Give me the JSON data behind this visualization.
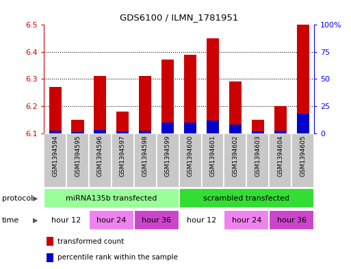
{
  "title": "GDS6100 / ILMN_1781951",
  "samples": [
    "GSM1394594",
    "GSM1394595",
    "GSM1394596",
    "GSM1394597",
    "GSM1394598",
    "GSM1394599",
    "GSM1394600",
    "GSM1394601",
    "GSM1394602",
    "GSM1394603",
    "GSM1394604",
    "GSM1394605"
  ],
  "transformed_count": [
    6.27,
    6.15,
    6.31,
    6.18,
    6.31,
    6.37,
    6.39,
    6.45,
    6.29,
    6.15,
    6.2,
    6.5
  ],
  "percentile_rank": [
    2.5,
    1.5,
    3.0,
    2.0,
    2.5,
    10.0,
    10.0,
    12.0,
    8.0,
    2.0,
    2.5,
    18.0
  ],
  "baseline": 6.1,
  "ylim_left": [
    6.1,
    6.5
  ],
  "ylim_right": [
    0,
    100
  ],
  "yticks_left": [
    6.1,
    6.2,
    6.3,
    6.4,
    6.5
  ],
  "yticks_right": [
    0,
    25,
    50,
    75,
    100
  ],
  "ytick_labels_right": [
    "0",
    "25",
    "50",
    "75",
    "100%"
  ],
  "bar_color_red": "#CC0000",
  "bar_color_blue": "#0000CC",
  "bar_width": 0.55,
  "protocol_groups": [
    {
      "label": "miRNA135b transfected",
      "start": 0,
      "end": 6,
      "color": "#99FF99"
    },
    {
      "label": "scrambled transfected",
      "start": 6,
      "end": 12,
      "color": "#33DD33"
    }
  ],
  "time_groups": [
    {
      "label": "hour 12",
      "start": 0,
      "end": 2,
      "color": "#FFFFFF"
    },
    {
      "label": "hour 24",
      "start": 2,
      "end": 4,
      "color": "#EE82EE"
    },
    {
      "label": "hour 36",
      "start": 4,
      "end": 6,
      "color": "#CC44CC"
    },
    {
      "label": "hour 12",
      "start": 6,
      "end": 8,
      "color": "#FFFFFF"
    },
    {
      "label": "hour 24",
      "start": 8,
      "end": 10,
      "color": "#EE82EE"
    },
    {
      "label": "hour 36",
      "start": 10,
      "end": 12,
      "color": "#CC44CC"
    }
  ],
  "sample_bg_color": "#C8C8C8",
  "legend_red_label": "transformed count",
  "legend_blue_label": "percentile rank within the sample",
  "protocol_label": "protocol",
  "time_label": "time",
  "fig_bg_color": "#FFFFFF",
  "border_color": "#888888"
}
